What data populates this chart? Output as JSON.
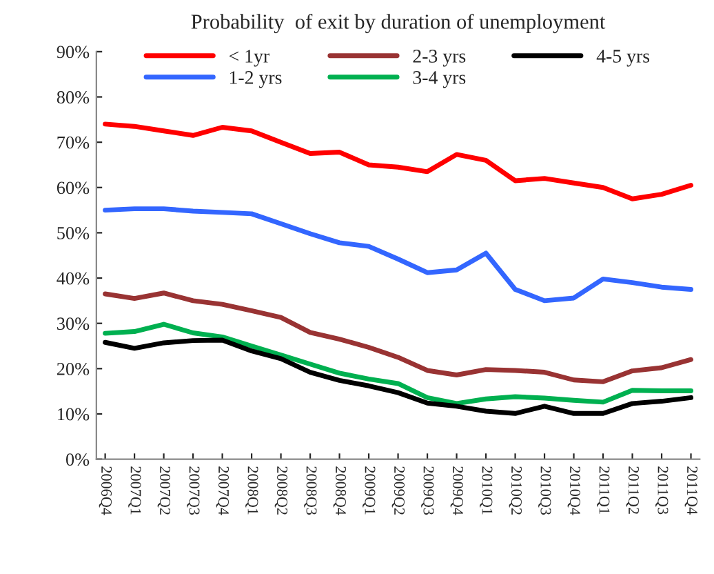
{
  "chart_data": {
    "type": "line",
    "title": "Probability  of exit by duration of unemployment",
    "categories": [
      "2006Q4",
      "2007Q1",
      "2007Q2",
      "2007Q3",
      "2007Q4",
      "2008Q1",
      "2008Q2",
      "2008Q3",
      "2008Q4",
      "2009Q1",
      "2009Q2",
      "2009Q3",
      "2009Q4",
      "2010Q1",
      "2010Q2",
      "2010Q3",
      "2010Q4",
      "2011Q1",
      "2011Q2",
      "2011Q3",
      "2011Q4"
    ],
    "series": [
      {
        "name": "< 1yr",
        "color": "#ff0000",
        "values": [
          74,
          73.5,
          72.5,
          71.5,
          73.3,
          72.5,
          70,
          67.5,
          67.8,
          65,
          64.5,
          63.5,
          67.3,
          66,
          61.5,
          62,
          61,
          60,
          57.5,
          58.5,
          60.5
        ]
      },
      {
        "name": "1-2 yrs",
        "color": "#3366ff",
        "values": [
          55,
          55.3,
          55.3,
          54.8,
          54.5,
          54.2,
          52,
          49.8,
          47.8,
          47,
          44.2,
          41.2,
          41.8,
          45.5,
          37.5,
          35,
          35.6,
          39.8,
          39,
          38,
          37.5
        ]
      },
      {
        "name": "2-3 yrs",
        "color": "#993333",
        "values": [
          36.5,
          35.5,
          36.7,
          35,
          34.2,
          32.8,
          31.3,
          28,
          26.5,
          24.7,
          22.5,
          19.6,
          18.6,
          19.8,
          19.6,
          19.2,
          17.5,
          17.1,
          19.5,
          20.2,
          22
        ]
      },
      {
        "name": "3-4 yrs",
        "color": "#00b050",
        "values": [
          27.8,
          28.2,
          29.8,
          27.9,
          27,
          25,
          23,
          21,
          19,
          17.7,
          16.7,
          13.6,
          12.3,
          13.3,
          13.8,
          13.5,
          13,
          12.6,
          15.2,
          15.1,
          15.1
        ]
      },
      {
        "name": "4-5 yrs",
        "color": "#000000",
        "values": [
          25.8,
          24.5,
          25.7,
          26.2,
          26.3,
          23.9,
          22.2,
          19.2,
          17.4,
          16.2,
          14.7,
          12.4,
          11.7,
          10.6,
          10.1,
          11.7,
          10.1,
          10.1,
          12.3,
          12.8,
          13.6
        ]
      }
    ],
    "ylim": [
      0,
      90
    ],
    "yticks": [
      {
        "value": 0,
        "label": "0%"
      },
      {
        "value": 10,
        "label": "10%"
      },
      {
        "value": 20,
        "label": "20%"
      },
      {
        "value": 30,
        "label": "30%"
      },
      {
        "value": 40,
        "label": "40%"
      },
      {
        "value": 50,
        "label": "50%"
      },
      {
        "value": 60,
        "label": "60%"
      },
      {
        "value": 70,
        "label": "70%"
      },
      {
        "value": 80,
        "label": "80%"
      },
      {
        "value": 90,
        "label": "90%"
      }
    ],
    "grid": false,
    "legend": "top",
    "marker": "none",
    "line_style": "solid"
  }
}
